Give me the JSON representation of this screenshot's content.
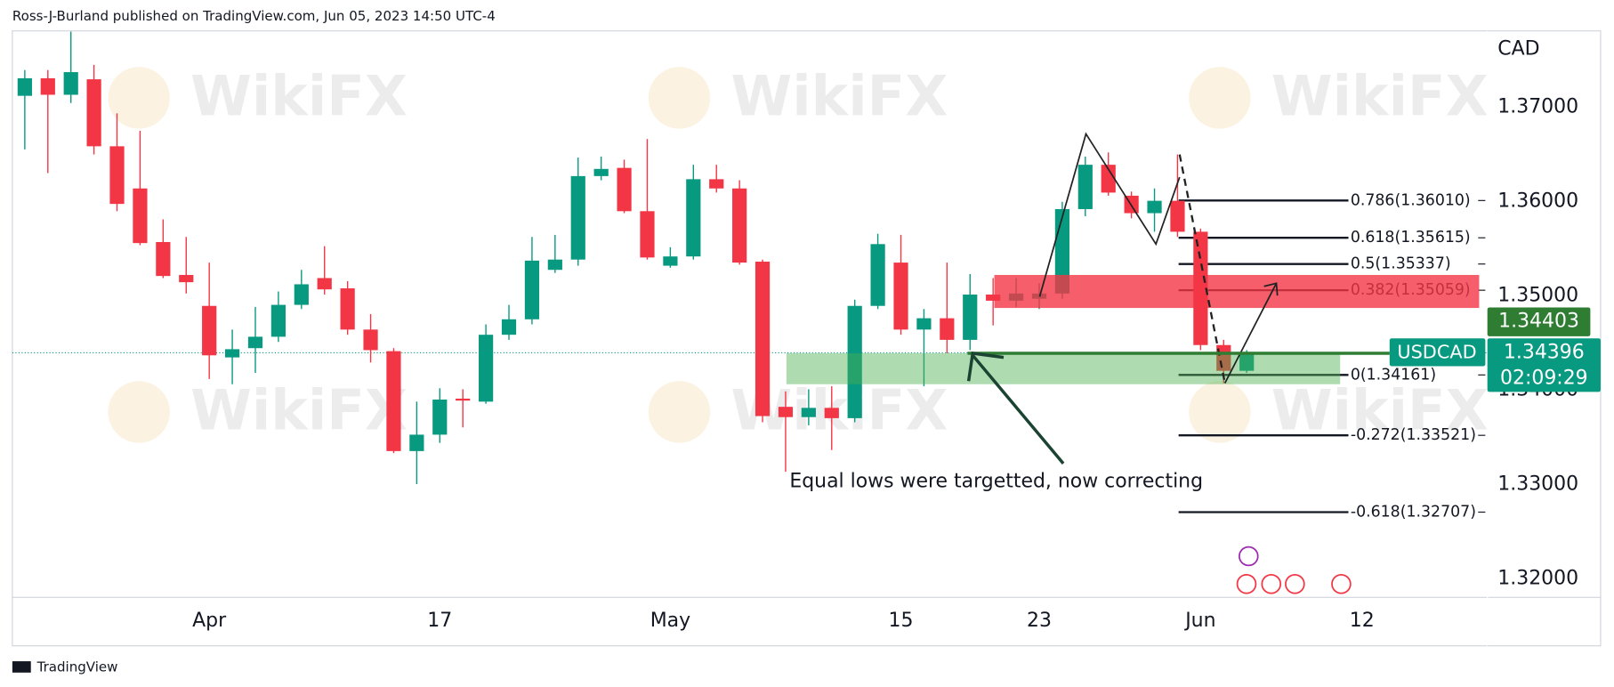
{
  "header": "Ross-J-Burland published on TradingView.com, Jun 05, 2023 14:50 UTC-4",
  "footer": "TradingView",
  "watermark": "WikiFX",
  "chart_data": {
    "type": "candlestick",
    "symbol": "USDCAD",
    "currency": "CAD",
    "up_color": "#089981",
    "down_color": "#f23645",
    "grid": false,
    "xlim": [
      -0.54,
      63.44
    ],
    "xticks": [
      {
        "value": 8,
        "label": "Apr"
      },
      {
        "value": 18,
        "label": "17"
      },
      {
        "value": 28,
        "label": "May"
      },
      {
        "value": 38,
        "label": "15"
      },
      {
        "value": 44,
        "label": "23"
      },
      {
        "value": 51,
        "label": "Jun"
      },
      {
        "value": 58,
        "label": "12"
      }
    ],
    "ylim": [
      1.31803,
      1.37808
    ],
    "yticks": [
      {
        "value": 1.32,
        "label": "1.32000"
      },
      {
        "value": 1.33,
        "label": "1.33000"
      },
      {
        "value": 1.34,
        "label": "1.34000"
      },
      {
        "value": 1.35,
        "label": "1.35000"
      },
      {
        "value": 1.36,
        "label": "1.36000"
      },
      {
        "value": 1.37,
        "label": "1.37000"
      }
    ],
    "open": [
      1.3712,
      1.37306,
      1.37131,
      1.37295,
      1.36585,
      1.36138,
      1.3557,
      1.35221,
      1.34893,
      1.34347,
      1.34445,
      1.34566,
      1.34904,
      1.35188,
      1.35079,
      1.34642,
      1.34413,
      1.33354,
      1.33528,
      1.3391,
      1.33878,
      1.34587,
      1.34751,
      1.35275,
      1.35384,
      1.36269,
      1.36356,
      1.35897,
      1.35319,
      1.35417,
      1.36236,
      1.36138,
      1.35362,
      1.33823,
      1.33714,
      1.33812,
      1.33703,
      1.34893,
      1.35352,
      1.34642,
      1.34762,
      1.34533,
      1.35013,
      1.34948,
      1.34969,
      1.35024,
      1.35919,
      1.36389,
      1.36061,
      1.35876,
      1.36007,
      1.35679,
      1.34478,
      1.34205
    ],
    "high": [
      1.37393,
      1.37393,
      1.378,
      1.37448,
      1.36934,
      1.36749,
      1.3581,
      1.35624,
      1.35352,
      1.34642,
      1.34882,
      1.35046,
      1.35275,
      1.35526,
      1.35155,
      1.34806,
      1.34445,
      1.33878,
      1.3402,
      1.34009,
      1.34697,
      1.34904,
      1.35624,
      1.35646,
      1.36465,
      1.36476,
      1.36443,
      1.36662,
      1.35515,
      1.36389,
      1.36389,
      1.36225,
      1.35384,
      1.33987,
      1.34009,
      1.34041,
      1.34959,
      1.35657,
      1.35646,
      1.3486,
      1.35352,
      1.35231,
      1.35188,
      1.35188,
      1.35133,
      1.35996,
      1.36476,
      1.3652,
      1.36105,
      1.36138,
      1.36498,
      1.35712,
      1.34533,
      1.34424
    ],
    "low": [
      1.36552,
      1.36301,
      1.37044,
      1.36498,
      1.35897,
      1.35537,
      1.35188,
      1.35024,
      1.34118,
      1.34063,
      1.34183,
      1.34511,
      1.3486,
      1.35013,
      1.34587,
      1.34293,
      1.33332,
      1.33004,
      1.33441,
      1.33605,
      1.33856,
      1.34533,
      1.34697,
      1.35242,
      1.35319,
      1.36225,
      1.35876,
      1.35384,
      1.35297,
      1.35384,
      1.36094,
      1.3533,
      1.33659,
      1.33135,
      1.33627,
      1.33365,
      1.33659,
      1.3486,
      1.34587,
      1.34041,
      1.34391,
      1.34424,
      1.34686,
      1.34882,
      1.3486,
      1.34969,
      1.35843,
      1.36061,
      1.35821,
      1.35679,
      1.35624,
      1.34424,
      1.34074,
      1.34183
    ],
    "close": [
      1.37306,
      1.37131,
      1.37371,
      1.36585,
      1.35974,
      1.35559,
      1.3521,
      1.35144,
      1.34369,
      1.34434,
      1.34566,
      1.34904,
      1.35122,
      1.35068,
      1.34642,
      1.34424,
      1.33354,
      1.33528,
      1.339,
      1.33889,
      1.34587,
      1.34751,
      1.35373,
      1.35384,
      1.36269,
      1.36345,
      1.35897,
      1.35406,
      1.35417,
      1.36236,
      1.36138,
      1.35352,
      1.33725,
      1.33714,
      1.33812,
      1.33703,
      1.34893,
      1.35548,
      1.34642,
      1.34762,
      1.34533,
      1.35013,
      1.34948,
      1.35024,
      1.35024,
      1.35919,
      1.36389,
      1.36094,
      1.35876,
      1.36007,
      1.35679,
      1.34478,
      1.34205,
      1.34396
    ],
    "fib_levels": [
      {
        "label": "0.786(1.36010)",
        "value": 1.3601
      },
      {
        "label": "0.618(1.35615)",
        "value": 1.35615
      },
      {
        "label": "0.5(1.35337)",
        "value": 1.35337
      },
      {
        "label": "0.382(1.35059)",
        "value": 1.35059
      },
      {
        "label": "0(1.34161)",
        "value": 1.34161
      },
      {
        "label": "-0.272(1.33521)",
        "value": 1.33521
      },
      {
        "label": "-0.618(1.32707)",
        "value": 1.32707
      }
    ],
    "zones": [
      {
        "color": "#f23645",
        "range": [
          1.34871,
          1.35221
        ]
      },
      {
        "color": "#4caf50",
        "range": [
          1.34063,
          1.34391
        ]
      }
    ],
    "annotation": "Equal lows were targetted, now correcting",
    "last_price": 1.34396,
    "countdown": "02:09:29",
    "bid_price": 1.34403
  }
}
